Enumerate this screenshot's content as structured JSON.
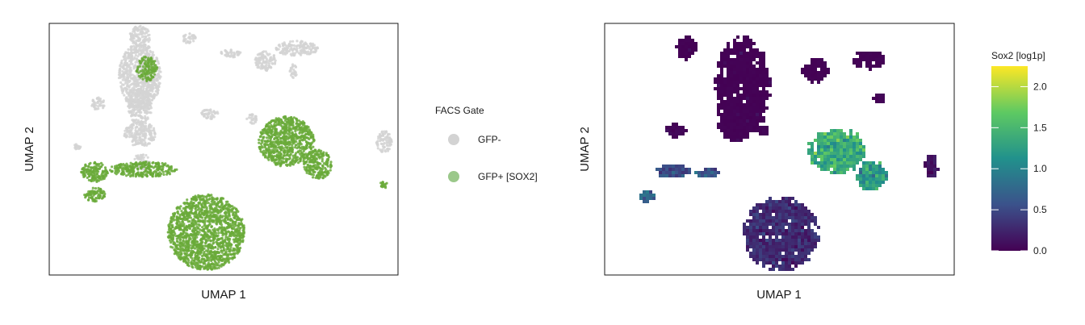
{
  "chart_data": [
    {
      "type": "scatter",
      "xlabel": "UMAP 1",
      "ylabel": "UMAP 2",
      "grid": false,
      "ticks": false,
      "legend": {
        "title": "FACS Gate",
        "placement": "right",
        "entries": [
          {
            "label": "GFP-",
            "color": "#d3d3d3"
          },
          {
            "label": "GFP+ [SOX2]",
            "color": "#6aaa3a"
          }
        ]
      },
      "series": [
        {
          "name": "GFP-",
          "clusters": [
            {
              "cx": 0.26,
              "cy": 0.79,
              "rx": 0.06,
              "ry": 0.13
            },
            {
              "cx": 0.26,
              "cy": 0.67,
              "rx": 0.035,
              "ry": 0.07
            },
            {
              "cx": 0.26,
              "cy": 0.56,
              "rx": 0.045,
              "ry": 0.05
            },
            {
              "cx": 0.265,
              "cy": 0.45,
              "rx": 0.025,
              "ry": 0.03
            },
            {
              "cx": 0.26,
              "cy": 0.95,
              "rx": 0.03,
              "ry": 0.04
            },
            {
              "cx": 0.4,
              "cy": 0.94,
              "rx": 0.02,
              "ry": 0.02
            },
            {
              "cx": 0.52,
              "cy": 0.88,
              "rx": 0.03,
              "ry": 0.015
            },
            {
              "cx": 0.62,
              "cy": 0.85,
              "rx": 0.03,
              "ry": 0.04
            },
            {
              "cx": 0.71,
              "cy": 0.9,
              "rx": 0.06,
              "ry": 0.03
            },
            {
              "cx": 0.7,
              "cy": 0.81,
              "rx": 0.01,
              "ry": 0.03
            },
            {
              "cx": 0.46,
              "cy": 0.64,
              "rx": 0.025,
              "ry": 0.02
            },
            {
              "cx": 0.96,
              "cy": 0.53,
              "rx": 0.022,
              "ry": 0.045
            },
            {
              "cx": 0.14,
              "cy": 0.68,
              "rx": 0.02,
              "ry": 0.025
            },
            {
              "cx": 0.08,
              "cy": 0.51,
              "rx": 0.01,
              "ry": 0.01
            },
            {
              "cx": 0.58,
              "cy": 0.62,
              "rx": 0.015,
              "ry": 0.02
            }
          ]
        },
        {
          "name": "GFP+ [SOX2]",
          "clusters": [
            {
              "cx": 0.45,
              "cy": 0.17,
              "rx": 0.11,
              "ry": 0.15
            },
            {
              "cx": 0.68,
              "cy": 0.53,
              "rx": 0.08,
              "ry": 0.1
            },
            {
              "cx": 0.77,
              "cy": 0.44,
              "rx": 0.04,
              "ry": 0.06
            },
            {
              "cx": 0.27,
              "cy": 0.42,
              "rx": 0.1,
              "ry": 0.03
            },
            {
              "cx": 0.13,
              "cy": 0.41,
              "rx": 0.04,
              "ry": 0.04
            },
            {
              "cx": 0.13,
              "cy": 0.32,
              "rx": 0.03,
              "ry": 0.03
            },
            {
              "cx": 0.96,
              "cy": 0.36,
              "rx": 0.012,
              "ry": 0.015
            },
            {
              "cx": 0.28,
              "cy": 0.82,
              "rx": 0.03,
              "ry": 0.05
            }
          ]
        }
      ]
    },
    {
      "type": "heatmap",
      "xlabel": "UMAP 1",
      "ylabel": "UMAP 2",
      "grid": false,
      "colorbar": {
        "title": "Sox2 [log1p]",
        "placement": "right",
        "ticks": [
          0.0,
          0.5,
          1.0,
          1.5,
          2.0
        ],
        "tick_labels": [
          "0.0",
          "0.5",
          "1.0",
          "1.5",
          "2.0"
        ],
        "range": [
          0.0,
          2.25
        ],
        "colormap": [
          "#440154",
          "#3b528b",
          "#21918c",
          "#5ec962",
          "#fde725"
        ]
      },
      "clusters": [
        {
          "cx": 0.39,
          "cy": 0.75,
          "rx": 0.08,
          "ry": 0.21,
          "mean": 0.02
        },
        {
          "cx": 0.37,
          "cy": 0.6,
          "rx": 0.05,
          "ry": 0.07,
          "mean": 0.03
        },
        {
          "cx": 0.23,
          "cy": 0.91,
          "rx": 0.03,
          "ry": 0.05,
          "mean": 0.02
        },
        {
          "cx": 0.6,
          "cy": 0.82,
          "rx": 0.04,
          "ry": 0.05,
          "mean": 0.03
        },
        {
          "cx": 0.75,
          "cy": 0.86,
          "rx": 0.05,
          "ry": 0.04,
          "mean": 0.03
        },
        {
          "cx": 0.78,
          "cy": 0.71,
          "rx": 0.02,
          "ry": 0.02,
          "mean": 0.05
        },
        {
          "cx": 0.2,
          "cy": 0.58,
          "rx": 0.03,
          "ry": 0.03,
          "mean": 0.05
        },
        {
          "cx": 0.45,
          "cy": 0.58,
          "rx": 0.02,
          "ry": 0.025,
          "mean": 0.05
        },
        {
          "cx": 0.66,
          "cy": 0.5,
          "rx": 0.09,
          "ry": 0.09,
          "mean": 1.4
        },
        {
          "cx": 0.76,
          "cy": 0.4,
          "rx": 0.05,
          "ry": 0.06,
          "mean": 1.2
        },
        {
          "cx": 0.19,
          "cy": 0.42,
          "rx": 0.05,
          "ry": 0.03,
          "mean": 0.5
        },
        {
          "cx": 0.29,
          "cy": 0.41,
          "rx": 0.04,
          "ry": 0.02,
          "mean": 0.6
        },
        {
          "cx": 0.12,
          "cy": 0.32,
          "rx": 0.025,
          "ry": 0.025,
          "mean": 0.7
        },
        {
          "cx": 0.5,
          "cy": 0.17,
          "rx": 0.11,
          "ry": 0.15,
          "mean": 0.3
        },
        {
          "cx": 0.93,
          "cy": 0.44,
          "rx": 0.02,
          "ry": 0.05,
          "mean": 0.1
        }
      ]
    }
  ]
}
